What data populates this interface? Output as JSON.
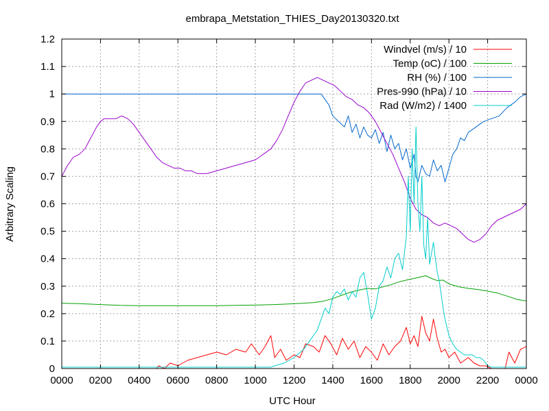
{
  "chart_data": {
    "type": "line",
    "title": "embrapa_Metstation_THIES_Day20130320.txt",
    "xlabel": "UTC Hour",
    "ylabel": "Arbitrary Scaling",
    "xlim": [
      0,
      24
    ],
    "ylim": [
      0,
      1.2
    ],
    "xticks": [
      {
        "v": 0,
        "label": "0000"
      },
      {
        "v": 2,
        "label": "0200"
      },
      {
        "v": 4,
        "label": "0400"
      },
      {
        "v": 6,
        "label": "0600"
      },
      {
        "v": 8,
        "label": "0800"
      },
      {
        "v": 10,
        "label": "1000"
      },
      {
        "v": 12,
        "label": "1200"
      },
      {
        "v": 14,
        "label": "1400"
      },
      {
        "v": 16,
        "label": "1600"
      },
      {
        "v": 18,
        "label": "1800"
      },
      {
        "v": 20,
        "label": "2000"
      },
      {
        "v": 22,
        "label": "2200"
      },
      {
        "v": 24,
        "label": "0000"
      }
    ],
    "yticks": [
      {
        "v": 0,
        "label": "0"
      },
      {
        "v": 0.1,
        "label": "0.1"
      },
      {
        "v": 0.2,
        "label": "0.2"
      },
      {
        "v": 0.3,
        "label": "0.3"
      },
      {
        "v": 0.4,
        "label": "0.4"
      },
      {
        "v": 0.5,
        "label": "0.5"
      },
      {
        "v": 0.6,
        "label": "0.6"
      },
      {
        "v": 0.7,
        "label": "0.7"
      },
      {
        "v": 0.8,
        "label": "0.8"
      },
      {
        "v": 0.9,
        "label": "0.9"
      },
      {
        "v": 1.0,
        "label": "1"
      },
      {
        "v": 1.1,
        "label": "1.1"
      },
      {
        "v": 1.2,
        "label": "1.2"
      }
    ],
    "grid": true,
    "legend_position": "top-right",
    "series": [
      {
        "name": "Windvel (m/s) / 10",
        "color": "#ff0000",
        "x": [
          0,
          4.9,
          5.0,
          5.3,
          5.6,
          6.0,
          6.5,
          7.0,
          7.5,
          8.0,
          8.5,
          9.0,
          9.5,
          9.8,
          10.2,
          10.5,
          10.8,
          11.0,
          11.3,
          11.6,
          12.0,
          12.3,
          12.6,
          13.0,
          13.3,
          13.6,
          13.9,
          14.2,
          14.5,
          14.8,
          15.1,
          15.4,
          15.7,
          16.0,
          16.3,
          16.6,
          16.9,
          17.2,
          17.5,
          17.8,
          18.0,
          18.2,
          18.4,
          18.6,
          18.8,
          19.0,
          19.2,
          19.4,
          19.6,
          19.8,
          20.0,
          20.3,
          20.6,
          21.0,
          21.3,
          21.6,
          21.9,
          22.2,
          22.6,
          22.9,
          23.1,
          23.4,
          23.7,
          24.0
        ],
        "values": [
          0.0,
          0.0,
          0.01,
          0.0,
          0.02,
          0.01,
          0.03,
          0.04,
          0.05,
          0.06,
          0.05,
          0.07,
          0.06,
          0.09,
          0.05,
          0.08,
          0.12,
          0.04,
          0.07,
          0.03,
          0.05,
          0.04,
          0.09,
          0.08,
          0.06,
          0.12,
          0.09,
          0.05,
          0.11,
          0.07,
          0.1,
          0.04,
          0.08,
          0.06,
          0.03,
          0.09,
          0.05,
          0.08,
          0.1,
          0.15,
          0.09,
          0.12,
          0.08,
          0.19,
          0.13,
          0.1,
          0.18,
          0.11,
          0.06,
          0.07,
          0.04,
          0.06,
          0.02,
          0.04,
          0.02,
          0.01,
          0.01,
          0.0,
          0.0,
          0.0,
          0.06,
          0.02,
          0.07,
          0.08
        ]
      },
      {
        "name": "Temp (oC) / 100",
        "color": "#00a000",
        "x": [
          0,
          1,
          2,
          3,
          4,
          5,
          6,
          7,
          8,
          9,
          10,
          11,
          12,
          13,
          13.5,
          14,
          14.5,
          15,
          15.5,
          15.8,
          16.2,
          16.6,
          17.0,
          17.4,
          17.8,
          18.2,
          18.5,
          18.8,
          19.1,
          19.4,
          19.7,
          20.0,
          20.5,
          21.0,
          21.5,
          22.0,
          22.5,
          23.0,
          23.5,
          24.0
        ],
        "values": [
          0.238,
          0.236,
          0.233,
          0.23,
          0.229,
          0.229,
          0.229,
          0.229,
          0.229,
          0.23,
          0.231,
          0.233,
          0.236,
          0.24,
          0.245,
          0.255,
          0.268,
          0.28,
          0.288,
          0.292,
          0.29,
          0.298,
          0.305,
          0.315,
          0.322,
          0.328,
          0.333,
          0.338,
          0.328,
          0.32,
          0.322,
          0.308,
          0.298,
          0.292,
          0.288,
          0.282,
          0.275,
          0.264,
          0.252,
          0.246
        ]
      },
      {
        "name": "RH (%) / 100",
        "color": "#0066cc",
        "x": [
          0,
          13.0,
          13.4,
          13.6,
          13.8,
          14.0,
          14.3,
          14.6,
          14.8,
          15.0,
          15.2,
          15.4,
          15.6,
          15.8,
          16.0,
          16.2,
          16.4,
          16.6,
          16.8,
          17.0,
          17.2,
          17.4,
          17.6,
          17.8,
          18.0,
          18.2,
          18.3,
          18.4,
          18.6,
          18.8,
          19.0,
          19.2,
          19.4,
          19.6,
          19.8,
          20.0,
          20.2,
          20.4,
          20.6,
          20.8,
          21.0,
          21.4,
          21.8,
          22.2,
          22.6,
          23.0,
          23.4,
          23.7,
          24.0
        ],
        "values": [
          1.0,
          1.0,
          1.0,
          0.98,
          0.96,
          0.92,
          0.9,
          0.88,
          0.92,
          0.86,
          0.89,
          0.84,
          0.88,
          0.85,
          0.84,
          0.87,
          0.82,
          0.86,
          0.79,
          0.85,
          0.8,
          0.82,
          0.76,
          0.8,
          0.73,
          0.78,
          0.7,
          0.68,
          0.74,
          0.71,
          0.7,
          0.76,
          0.72,
          0.74,
          0.68,
          0.73,
          0.78,
          0.8,
          0.84,
          0.83,
          0.86,
          0.88,
          0.9,
          0.91,
          0.92,
          0.95,
          0.97,
          0.99,
          1.0
        ]
      },
      {
        "name": "Pres-990 (hPa) / 10",
        "color": "#9900cc",
        "x": [
          0,
          0.3,
          0.6,
          0.9,
          1.2,
          1.5,
          1.8,
          2.0,
          2.2,
          2.5,
          2.8,
          3.1,
          3.4,
          3.7,
          4.0,
          4.3,
          4.6,
          4.9,
          5.2,
          5.5,
          5.8,
          6.1,
          6.4,
          6.7,
          7.0,
          7.5,
          8.0,
          8.5,
          9.0,
          9.5,
          10.0,
          10.4,
          10.8,
          11.1,
          11.4,
          11.7,
          12.0,
          12.3,
          12.6,
          12.9,
          13.2,
          13.5,
          13.8,
          14.1,
          14.4,
          14.7,
          15.0,
          15.3,
          15.6,
          15.9,
          16.2,
          16.5,
          16.8,
          17.1,
          17.4,
          17.7,
          18.0,
          18.3,
          18.6,
          18.9,
          19.2,
          19.5,
          19.8,
          20.1,
          20.4,
          20.7,
          21.0,
          21.3,
          21.6,
          21.9,
          22.2,
          22.5,
          22.8,
          23.1,
          23.4,
          23.7,
          24.0
        ],
        "values": [
          0.7,
          0.74,
          0.77,
          0.78,
          0.8,
          0.84,
          0.88,
          0.9,
          0.91,
          0.91,
          0.91,
          0.92,
          0.91,
          0.89,
          0.86,
          0.83,
          0.8,
          0.77,
          0.75,
          0.74,
          0.73,
          0.73,
          0.72,
          0.72,
          0.71,
          0.71,
          0.72,
          0.73,
          0.74,
          0.75,
          0.76,
          0.78,
          0.8,
          0.83,
          0.87,
          0.92,
          0.97,
          1.01,
          1.04,
          1.05,
          1.06,
          1.05,
          1.04,
          1.03,
          1.01,
          0.99,
          0.98,
          0.96,
          0.95,
          0.93,
          0.9,
          0.86,
          0.82,
          0.78,
          0.73,
          0.68,
          0.62,
          0.58,
          0.56,
          0.55,
          0.53,
          0.52,
          0.53,
          0.52,
          0.51,
          0.49,
          0.47,
          0.46,
          0.47,
          0.49,
          0.52,
          0.54,
          0.55,
          0.56,
          0.57,
          0.58,
          0.6
        ]
      },
      {
        "name": "Rad (W/m2) / 1400",
        "color": "#00cccc",
        "x": [
          0,
          10.8,
          11.0,
          11.5,
          12.0,
          12.5,
          12.8,
          13.0,
          13.2,
          13.4,
          13.6,
          13.8,
          14.0,
          14.2,
          14.4,
          14.6,
          14.8,
          15.0,
          15.2,
          15.4,
          15.6,
          15.8,
          16.0,
          16.2,
          16.4,
          16.6,
          16.8,
          17.0,
          17.2,
          17.4,
          17.6,
          17.8,
          17.9,
          18.0,
          18.1,
          18.2,
          18.3,
          18.4,
          18.5,
          18.6,
          18.7,
          18.8,
          18.9,
          19.0,
          19.1,
          19.2,
          19.3,
          19.4,
          19.5,
          19.6,
          19.7,
          19.8,
          20.0,
          20.2,
          20.4,
          20.6,
          20.8,
          21.0,
          21.2,
          21.4,
          21.6,
          21.8,
          22.0,
          22.2,
          22.4,
          24.0
        ],
        "values": [
          0.005,
          0.005,
          0.01,
          0.02,
          0.04,
          0.07,
          0.1,
          0.12,
          0.14,
          0.18,
          0.22,
          0.2,
          0.26,
          0.28,
          0.27,
          0.29,
          0.25,
          0.28,
          0.26,
          0.33,
          0.35,
          0.27,
          0.18,
          0.22,
          0.3,
          0.32,
          0.37,
          0.33,
          0.4,
          0.42,
          0.36,
          0.48,
          0.7,
          0.5,
          0.8,
          0.6,
          0.88,
          0.6,
          0.5,
          0.7,
          0.45,
          0.4,
          0.55,
          0.38,
          0.42,
          0.46,
          0.4,
          0.35,
          0.32,
          0.27,
          0.22,
          0.18,
          0.12,
          0.09,
          0.07,
          0.06,
          0.05,
          0.05,
          0.05,
          0.04,
          0.04,
          0.03,
          0.01,
          0.005,
          0.005,
          0.005
        ]
      }
    ]
  }
}
